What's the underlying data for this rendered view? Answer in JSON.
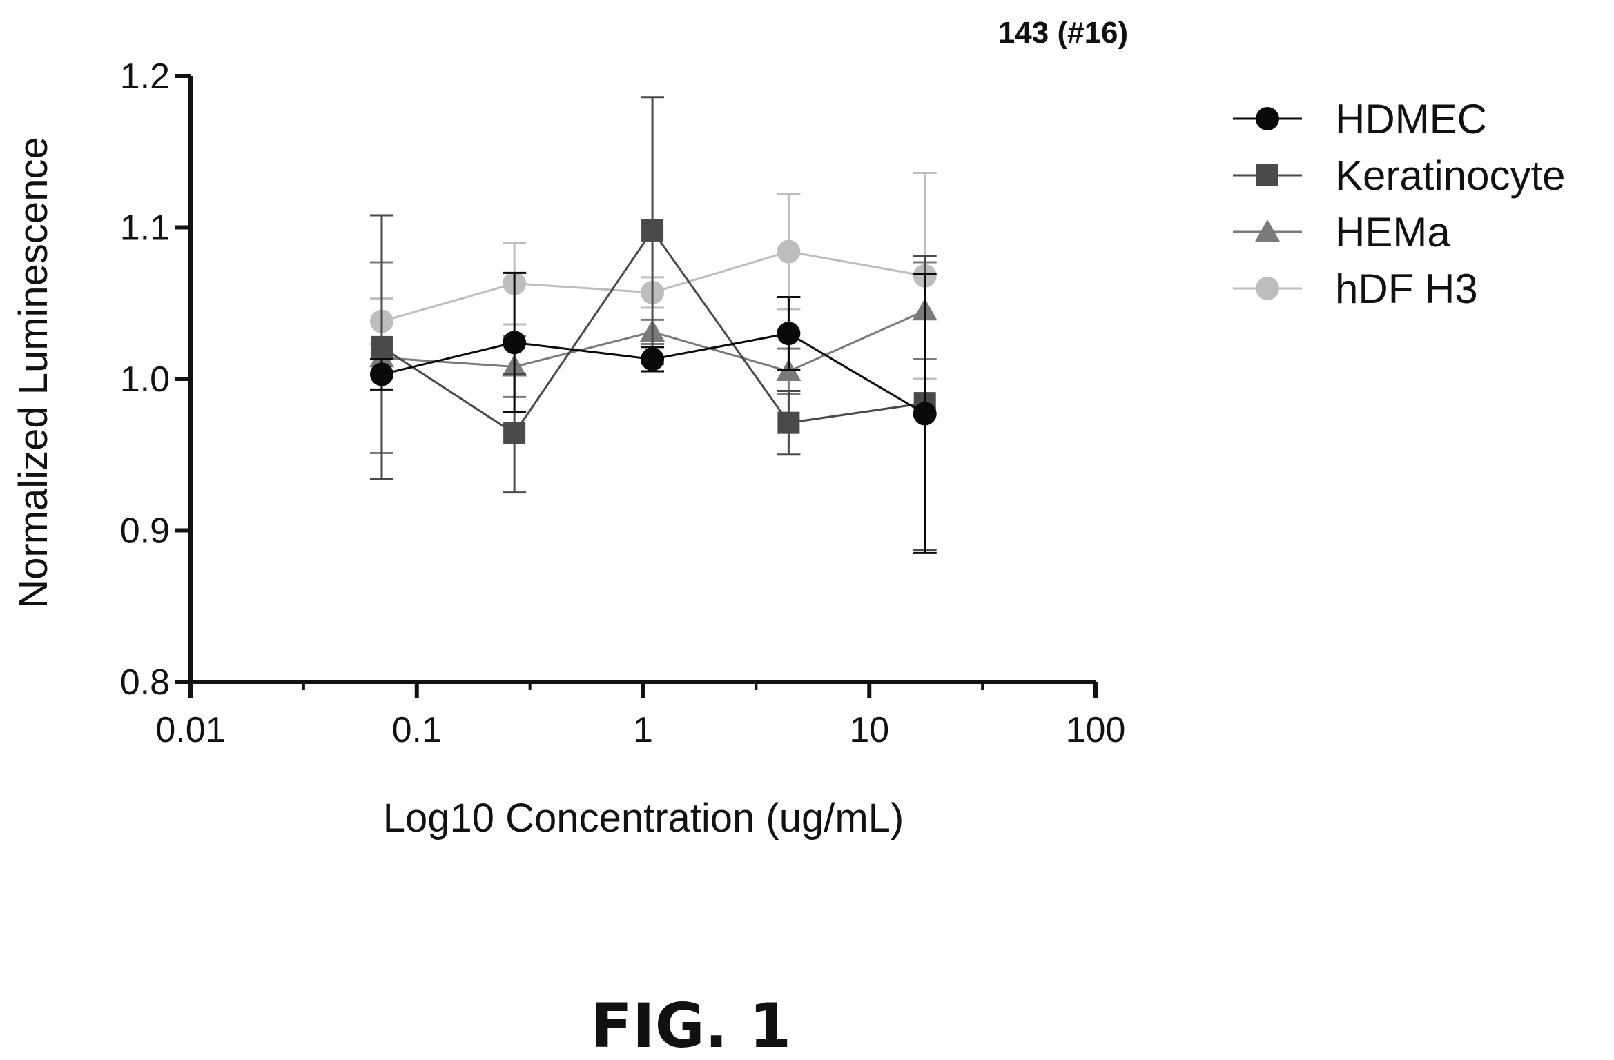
{
  "figure": {
    "label": "FIG. 1"
  },
  "chart_data": {
    "type": "scatter",
    "title": "143 (#16)",
    "xlabel": "Log10 Concentration (ug/mL)",
    "ylabel": "Normalized Luminescence",
    "xscale": "log",
    "xlim": [
      0.01,
      100
    ],
    "ylim": [
      0.8,
      1.2
    ],
    "xticks": [
      0.01,
      0.1,
      1,
      10,
      100
    ],
    "xtick_labels": [
      "0.01",
      "0.1",
      "1",
      "10",
      "100"
    ],
    "yticks": [
      0.8,
      0.9,
      1.0,
      1.1,
      1.2
    ],
    "ytick_labels": [
      "0.8",
      "0.9",
      "1.0",
      "1.1",
      "1.2"
    ],
    "grid": false,
    "legend_position": "right",
    "x": [
      0.07,
      0.27,
      1.1,
      4.4,
      17.6
    ],
    "series": [
      {
        "name": "HDMEC",
        "marker": "circle",
        "color": "#0a0a0a",
        "values": [
          1.003,
          1.024,
          1.013,
          1.03,
          0.977
        ],
        "errors": [
          0.01,
          0.046,
          0.008,
          0.024,
          0.092
        ]
      },
      {
        "name": "Keratinocyte",
        "marker": "square",
        "color": "#4a4a4a",
        "values": [
          1.021,
          0.964,
          1.098,
          0.971,
          0.984
        ],
        "errors": [
          0.087,
          0.039,
          0.088,
          0.021,
          0.097
        ]
      },
      {
        "name": "HEMa",
        "marker": "triangle",
        "color": "#7a7a7a",
        "values": [
          1.014,
          1.008,
          1.031,
          1.005,
          1.045
        ],
        "errors": [
          0.063,
          0.02,
          0.008,
          0.015,
          0.032
        ]
      },
      {
        "name": "hDF H3",
        "marker": "circle",
        "color": "#bdbdbd",
        "values": [
          1.038,
          1.063,
          1.057,
          1.084,
          1.068
        ],
        "errors": [
          0.015,
          0.027,
          0.01,
          0.038,
          0.068
        ]
      }
    ]
  }
}
